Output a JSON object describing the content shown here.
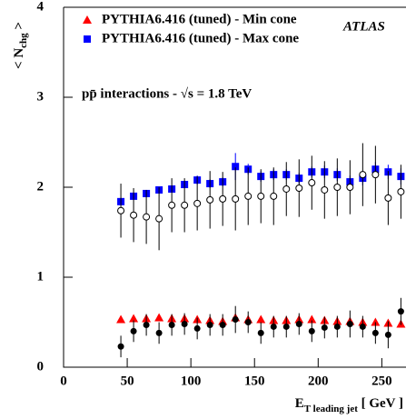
{
  "chart_data": {
    "type": "scatter",
    "ylabel": [
      "< N",
      "chg",
      " >"
    ],
    "xlabel": [
      "E",
      "T leading jet",
      " [ GeV ]"
    ],
    "annotations": [
      "ATLAS",
      "pp̄ interactions - √s = 1.8 TeV"
    ],
    "x": [
      45,
      55,
      65,
      75,
      85,
      95,
      105,
      115,
      125,
      135,
      145,
      155,
      165,
      175,
      185,
      195,
      205,
      215,
      225,
      235,
      245,
      255,
      265
    ],
    "series": [
      {
        "name": "PYTHIA6.416 (tuned) - Min cone",
        "color": "#ff0000",
        "marker": "triangle",
        "values": [
          0.53,
          0.54,
          0.54,
          0.55,
          0.54,
          0.54,
          0.53,
          0.52,
          0.51,
          0.55,
          0.53,
          0.53,
          0.52,
          0.52,
          0.53,
          0.53,
          0.52,
          0.51,
          0.51,
          0.5,
          0.5,
          0.49,
          0.48
        ],
        "errors": [
          0.03,
          0.03,
          0.03,
          0.03,
          0.03,
          0.03,
          0.03,
          0.03,
          0.03,
          0.04,
          0.03,
          0.03,
          0.03,
          0.03,
          0.03,
          0.03,
          0.03,
          0.03,
          0.03,
          0.03,
          0.03,
          0.03,
          0.03
        ]
      },
      {
        "name": "PYTHIA6.416 (tuned) - Max cone",
        "color": "#0000ff",
        "marker": "square",
        "values": [
          1.84,
          1.9,
          1.93,
          1.97,
          1.98,
          2.03,
          2.08,
          2.04,
          2.06,
          2.23,
          2.2,
          2.12,
          2.14,
          2.14,
          2.1,
          2.17,
          2.17,
          2.14,
          2.06,
          2.1,
          2.2,
          2.17,
          2.12
        ],
        "errors": [
          0.04,
          0.04,
          0.04,
          0.04,
          0.04,
          0.04,
          0.05,
          0.05,
          0.05,
          0.15,
          0.06,
          0.06,
          0.06,
          0.06,
          0.06,
          0.06,
          0.07,
          0.07,
          0.07,
          0.08,
          0.08,
          0.08,
          0.09
        ]
      },
      {
        "color": "#000000",
        "marker": "circle-open",
        "values": [
          1.74,
          1.69,
          1.67,
          1.65,
          1.8,
          1.8,
          1.82,
          1.86,
          1.87,
          1.87,
          1.9,
          1.9,
          1.9,
          1.98,
          1.99,
          2.05,
          1.97,
          2.0,
          2.0,
          2.14,
          2.14,
          1.88,
          1.95
        ],
        "errors": [
          0.3,
          0.3,
          0.3,
          0.35,
          0.3,
          0.3,
          0.3,
          0.32,
          0.3,
          0.35,
          0.32,
          0.3,
          0.32,
          0.3,
          0.32,
          0.3,
          0.32,
          0.32,
          0.3,
          0.35,
          0.32,
          0.3,
          0.3
        ]
      },
      {
        "color": "#000000",
        "marker": "circle",
        "values": [
          0.23,
          0.4,
          0.47,
          0.38,
          0.47,
          0.48,
          0.43,
          0.47,
          0.47,
          0.53,
          0.5,
          0.38,
          0.45,
          0.45,
          0.48,
          0.4,
          0.44,
          0.45,
          0.48,
          0.45,
          0.38,
          0.36,
          0.62
        ],
        "errors": [
          0.12,
          0.12,
          0.12,
          0.12,
          0.12,
          0.12,
          0.12,
          0.12,
          0.12,
          0.15,
          0.12,
          0.12,
          0.12,
          0.12,
          0.12,
          0.12,
          0.12,
          0.12,
          0.15,
          0.12,
          0.12,
          0.15,
          0.15
        ]
      }
    ],
    "xlim": [
      0,
      269
    ],
    "ylim": [
      0,
      4
    ],
    "xticks": [
      0,
      50,
      100,
      150,
      200,
      250
    ],
    "yticks": [
      0,
      1,
      2,
      3,
      4
    ],
    "grid": false
  }
}
